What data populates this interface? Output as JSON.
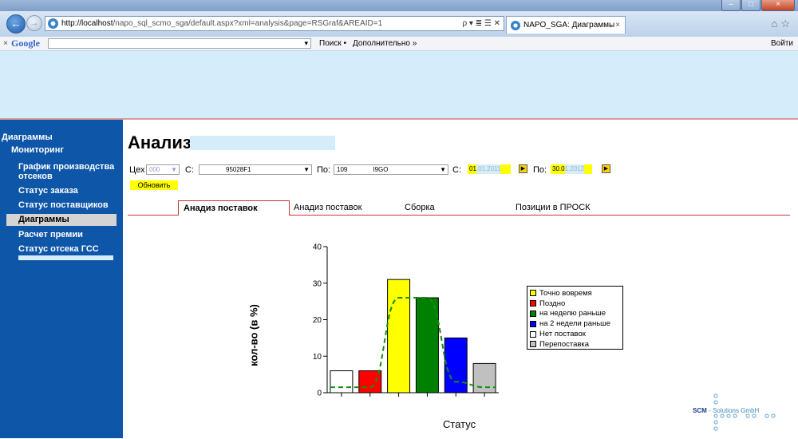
{
  "browser": {
    "url_host": "http://localhost",
    "url_path": "/napo_sql_scmo_sga/default.aspx?xml=analysis&page=RSGraf&AREAID=1",
    "address_tools": "ρ ▾ ≣ ☰ ✕",
    "tab_title": "NAPO_SGA: Диаграммы",
    "tab_close": "×",
    "back": "←",
    "forward": "→",
    "home_icons": "⌂☆",
    "window_controls": [
      "–",
      "□",
      "×"
    ]
  },
  "google_bar": {
    "close": "×",
    "logo": "Google",
    "search_button": "Поиск •",
    "more": "Дополнительно »",
    "login": "Войти"
  },
  "sidebar": {
    "items": [
      {
        "label": "Диаграммы"
      },
      {
        "label": "Мониторинг"
      },
      {
        "label": "График производства"
      },
      {
        "label": "отсеков"
      },
      {
        "label": "Статус заказа"
      },
      {
        "label": "Статус поставщиков"
      },
      {
        "label": "Диаграммы"
      },
      {
        "label": "Расчет премии"
      },
      {
        "label": "Статус отсека ГСС"
      }
    ]
  },
  "page": {
    "title": "Анализ",
    "filters": {
      "ceh_label": "Цех",
      "ceh_value": "000",
      "from_label": "С:",
      "from_value": "95028F1",
      "to_label": "По:",
      "to_value_a": "109",
      "to_value_b": "I9GO",
      "date_from_label": "С:",
      "date_from_value": "01",
      "date_from_value_rest": ".01.2011",
      "date_to_label": "По:",
      "date_to_value": "30.0",
      "date_to_value_rest": "1.2012",
      "refresh": "Обновить",
      "dropdown_arrow": "▼",
      "calendar": "▶"
    },
    "tabs": [
      {
        "label": "Анадиз поставок",
        "active": true
      },
      {
        "label": "Анадиз поставок",
        "active": false
      },
      {
        "label": "Сборка",
        "active": false
      },
      {
        "label": "Позиции в ПРОСК",
        "active": false
      }
    ]
  },
  "chart_data": {
    "type": "bar",
    "title": "",
    "xlabel": "Статус",
    "ylabel": "кол-во (в %)",
    "ylim": [
      0,
      40
    ],
    "yticks": [
      0,
      10,
      20,
      30,
      40
    ],
    "grid": false,
    "legend_position": "right",
    "categories": [
      "Нет поставок",
      "Поздно",
      "Точно вовремя",
      "на неделю раньше",
      "на 2 недели раньше",
      "Перепоставка"
    ],
    "values": [
      6,
      6,
      31,
      26,
      15,
      8
    ],
    "colors": [
      "#ffffff",
      "#ff0000",
      "#ffff00",
      "#008000",
      "#0000ff",
      "#c0c0c0"
    ],
    "trend_line": {
      "style": "dashed",
      "color": "#109010",
      "y": [
        1.5,
        1.5,
        26,
        26,
        3,
        1.5
      ]
    },
    "legend": [
      {
        "label": "Точно вовремя",
        "color": "#ffff00"
      },
      {
        "label": "Поздно",
        "color": "#ff0000"
      },
      {
        "label": "на неделю раньше",
        "color": "#008000"
      },
      {
        "label": "на 2 недели раньше",
        "color": "#0000ff"
      },
      {
        "label": "Нет поставок",
        "color": "#ffffff"
      },
      {
        "label": "Перепоставка",
        "color": "#c0c0c0"
      }
    ]
  },
  "footer": {
    "logo_scm": "SCM",
    "logo_rest": "◦ Solutions GmbH"
  }
}
